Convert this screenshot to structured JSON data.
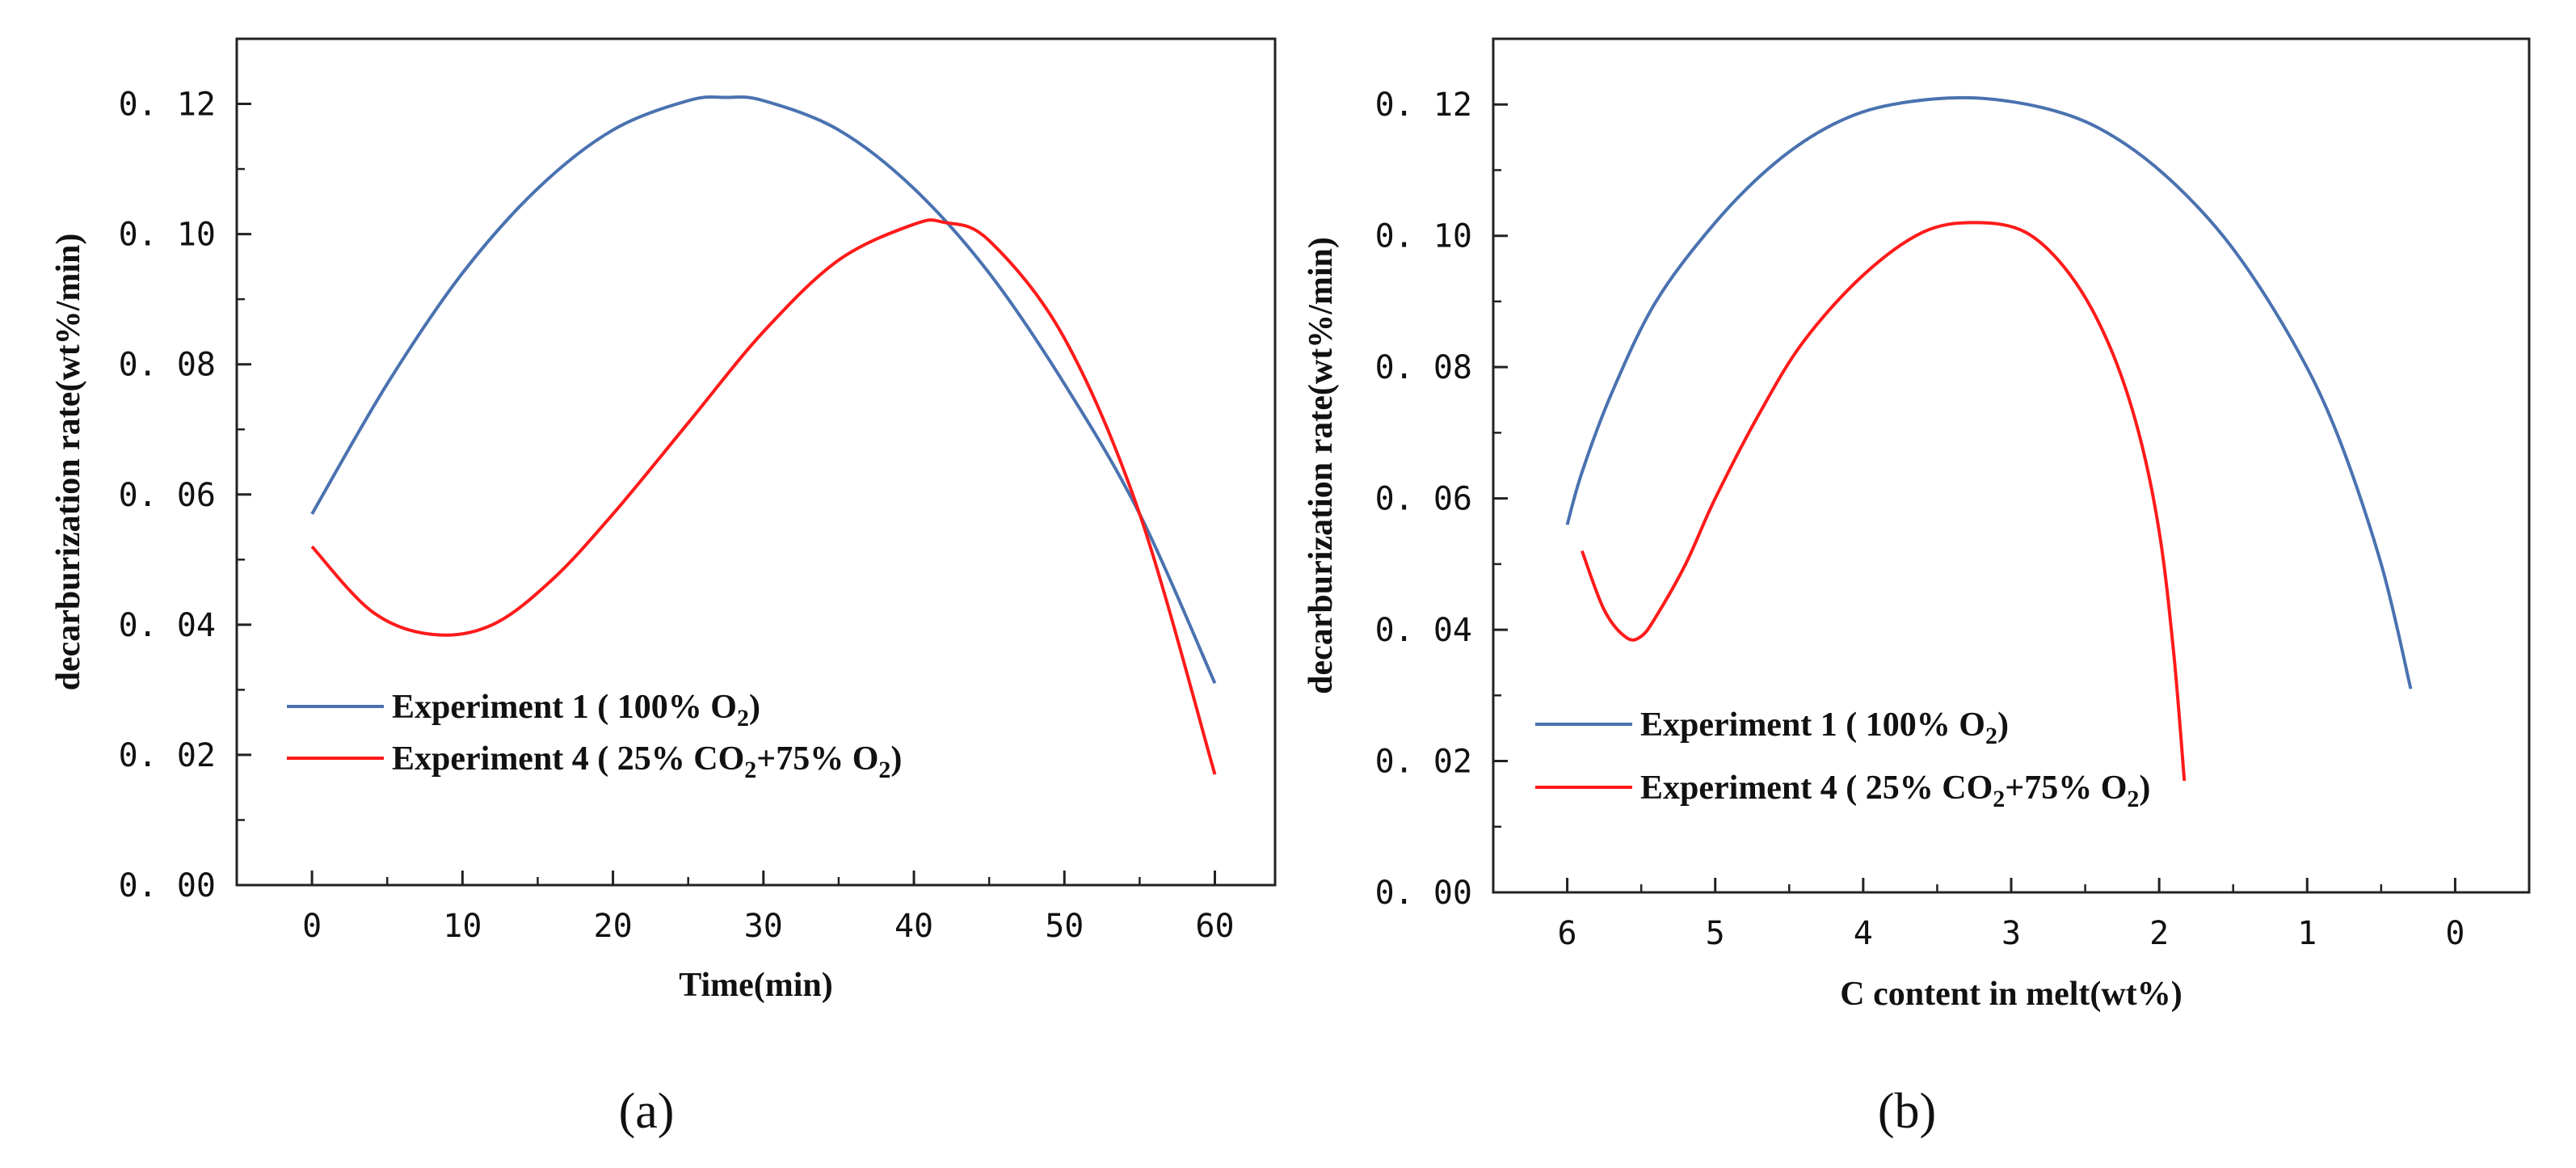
{
  "chart_data": [
    {
      "type": "line",
      "panel_label": "(a)",
      "xlabel": "Time(min)",
      "ylabel": "decarburization rate(wt%/min)",
      "xlim": [
        -5,
        64
      ],
      "ylim": [
        0,
        0.13
      ],
      "xticks": [
        0,
        10,
        20,
        30,
        40,
        50,
        60
      ],
      "xtick_labels": [
        "0",
        "10",
        "20",
        "30",
        "40",
        "50",
        "60"
      ],
      "yticks": [
        0,
        0.02,
        0.04,
        0.06,
        0.08,
        0.1,
        0.12
      ],
      "ytick_labels": [
        "0. 00",
        "0. 02",
        "0. 04",
        "0. 06",
        "0. 08",
        "0. 10",
        "0. 12"
      ],
      "grid": false,
      "legend_position": "bottom-left",
      "series": [
        {
          "name": "Experiment 1 ( 100% O2)",
          "legend_main": "Experiment 1 ( 100% O",
          "legend_sub": "2",
          "legend_tail": ")",
          "color": "#4a72b0",
          "x": [
            0,
            5,
            10,
            15,
            20,
            25,
            27.5,
            30,
            35,
            40,
            45,
            50,
            55,
            60
          ],
          "y": [
            0.057,
            0.077,
            0.094,
            0.107,
            0.116,
            0.1205,
            0.121,
            0.1205,
            0.116,
            0.107,
            0.094,
            0.077,
            0.057,
            0.031
          ]
        },
        {
          "name": "Experiment 4 ( 25% CO2+75% O2)",
          "legend_main": "Experiment 4 ( 25% CO",
          "legend_sub": "2",
          "legend_mid": "+75% O",
          "legend_sub2": "2",
          "legend_tail": ")",
          "color": "#ff1a1a",
          "x": [
            0,
            4,
            8,
            12,
            16,
            20,
            25,
            30,
            35,
            40,
            42,
            45,
            50,
            55,
            60
          ],
          "y": [
            0.052,
            0.042,
            0.0385,
            0.04,
            0.047,
            0.057,
            0.071,
            0.085,
            0.096,
            0.1015,
            0.1018,
            0.099,
            0.084,
            0.057,
            0.017
          ]
        }
      ]
    },
    {
      "type": "line",
      "panel_label": "(b)",
      "xlabel": "C content in melt(wt%)",
      "ylabel": "decarburization rate(wt%/min)",
      "xlim": [
        6.5,
        -0.5
      ],
      "ylim": [
        0,
        0.13
      ],
      "x_reversed": true,
      "xticks": [
        6,
        5,
        4,
        3,
        2,
        1,
        0
      ],
      "xtick_labels": [
        "6",
        "5",
        "4",
        "3",
        "2",
        "1",
        "0"
      ],
      "yticks": [
        0,
        0.02,
        0.04,
        0.06,
        0.08,
        0.1,
        0.12
      ],
      "ytick_labels": [
        "0. 00",
        "0. 02",
        "0. 04",
        "0. 06",
        "0. 08",
        "0. 10",
        "0. 12"
      ],
      "grid": false,
      "legend_position": "bottom-left",
      "series": [
        {
          "name": "Experiment 1 ( 100% O2)",
          "legend_main": "Experiment 1 ( 100% O",
          "legend_sub": "2",
          "legend_tail": ")",
          "color": "#4a72b0",
          "x": [
            6.0,
            5.9,
            5.7,
            5.4,
            5.0,
            4.6,
            4.2,
            3.8,
            3.25,
            2.7,
            2.3,
            1.9,
            1.5,
            1.1,
            0.8,
            0.5,
            0.3
          ],
          "y": [
            0.056,
            0.064,
            0.076,
            0.09,
            0.102,
            0.111,
            0.117,
            0.12,
            0.121,
            0.119,
            0.115,
            0.108,
            0.098,
            0.084,
            0.07,
            0.05,
            0.031
          ]
        },
        {
          "name": "Experiment 4 ( 25% CO2+75% O2)",
          "legend_main": "Experiment 4 ( 25% CO",
          "legend_sub": "2",
          "legend_mid": "+75% O",
          "legend_sub2": "2",
          "legend_tail": ")",
          "color": "#ff1a1a",
          "x": [
            5.9,
            5.75,
            5.6,
            5.5,
            5.4,
            5.2,
            5.0,
            4.7,
            4.4,
            4.0,
            3.6,
            3.25,
            2.9,
            2.6,
            2.35,
            2.15,
            2.0,
            1.9,
            1.83
          ],
          "y": [
            0.052,
            0.043,
            0.0388,
            0.039,
            0.042,
            0.05,
            0.06,
            0.073,
            0.084,
            0.094,
            0.1005,
            0.102,
            0.1005,
            0.094,
            0.084,
            0.071,
            0.055,
            0.036,
            0.017
          ]
        }
      ]
    }
  ]
}
